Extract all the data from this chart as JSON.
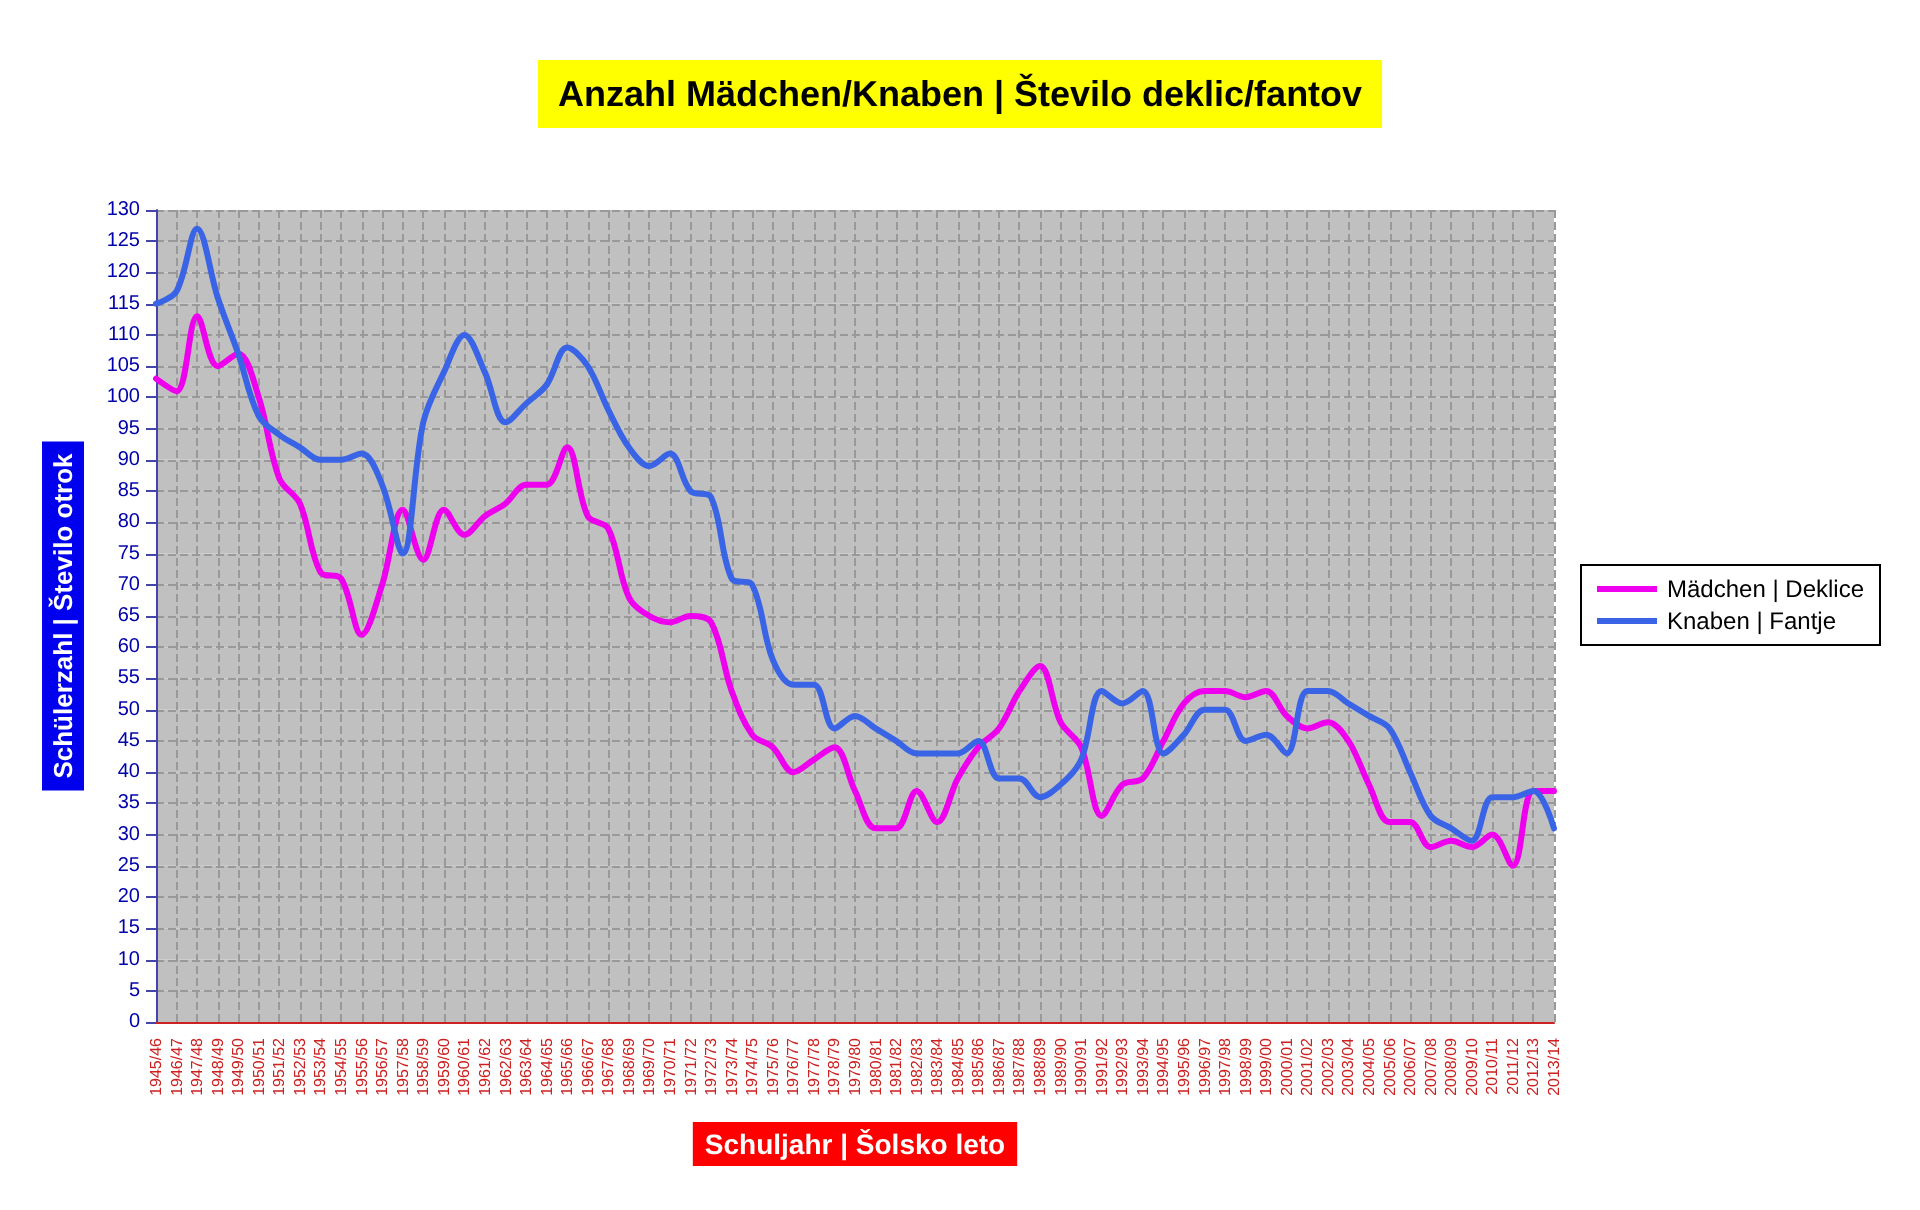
{
  "chart_data": {
    "type": "line",
    "title": "Anzahl Mädchen/Knaben | Število deklic/fantov",
    "xlabel": "Schuljahr | Šolsko leto",
    "ylabel": "Schülerzahl | Število otrok",
    "categories": [
      "1945/46",
      "1946/47",
      "1947/48",
      "1948/49",
      "1949/50",
      "1950/51",
      "1951/52",
      "1952/53",
      "1953/54",
      "1954/55",
      "1955/56",
      "1956/57",
      "1957/58",
      "1958/59",
      "1959/60",
      "1960/61",
      "1961/62",
      "1962/63",
      "1963/64",
      "1964/65",
      "1965/66",
      "1966/67",
      "1967/68",
      "1968/69",
      "1969/70",
      "1970/71",
      "1971/72",
      "1972/73",
      "1973/74",
      "1974/75",
      "1975/76",
      "1976/77",
      "1977/78",
      "1978/79",
      "1979/80",
      "1980/81",
      "1981/82",
      "1982/83",
      "1983/84",
      "1984/85",
      "1985/86",
      "1986/87",
      "1987/88",
      "1988/89",
      "1989/90",
      "1990/91",
      "1991/92",
      "1992/93",
      "1993/94",
      "1994/95",
      "1995/96",
      "1996/97",
      "1997/98",
      "1998/99",
      "1999/00",
      "2000/01",
      "2001/02",
      "2002/03",
      "2003/04",
      "2004/05",
      "2005/06",
      "2006/07",
      "2007/08",
      "2008/09",
      "2009/10",
      "2010/11",
      "2011/12",
      "2012/13",
      "2013/14"
    ],
    "series": [
      {
        "name": "Mädchen | Deklice",
        "color": "#ee00ee",
        "values": [
          103,
          101,
          113,
          105,
          107,
          100,
          87,
          83,
          72,
          71,
          62,
          70,
          82,
          74,
          82,
          78,
          81,
          83,
          86,
          86,
          92,
          81,
          79,
          68,
          65,
          64,
          65,
          64,
          53,
          46,
          44,
          40,
          42,
          44,
          37,
          31,
          31,
          37,
          32,
          39,
          44,
          47,
          53,
          57,
          48,
          44,
          33,
          38,
          39,
          45,
          51,
          53,
          53,
          52,
          53,
          49,
          47,
          48,
          45,
          38,
          32,
          32,
          28,
          29,
          28,
          30,
          25,
          37,
          37
        ]
      },
      {
        "name": "Knaben | Fantje",
        "color": "#3a64e6",
        "values": [
          115,
          117,
          127,
          116,
          107,
          97,
          94,
          92,
          90,
          90,
          91,
          86,
          75,
          96,
          104,
          110,
          104,
          96,
          99,
          102,
          108,
          105,
          98,
          92,
          89,
          91,
          85,
          84,
          71,
          70,
          58,
          54,
          54,
          47,
          49,
          47,
          45,
          43,
          43,
          43,
          45,
          39,
          39,
          36,
          38,
          42,
          53,
          51,
          53,
          43,
          46,
          50,
          50,
          45,
          46,
          43,
          53,
          53,
          51,
          49,
          47,
          40,
          33,
          31,
          29,
          36,
          36,
          37,
          31
        ]
      }
    ],
    "ylim": [
      0,
      130
    ],
    "yticks": [
      0,
      5,
      10,
      15,
      20,
      25,
      30,
      35,
      40,
      45,
      50,
      55,
      60,
      65,
      70,
      75,
      80,
      85,
      90,
      95,
      100,
      105,
      110,
      115,
      120,
      125,
      130
    ],
    "grid": true,
    "legend": "right",
    "marker": "none",
    "line_style": "solid"
  }
}
